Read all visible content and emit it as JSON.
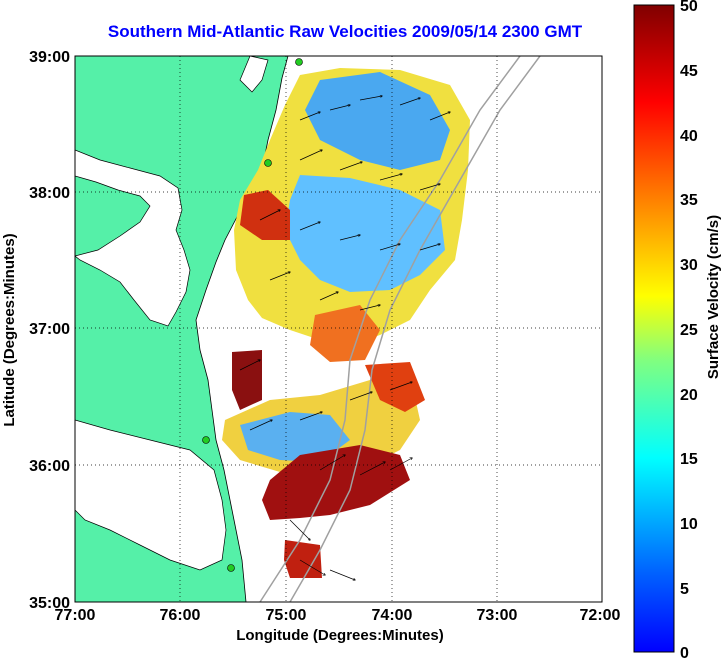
{
  "title": "Southern Mid-Atlantic Raw Velocities 2009/05/14 2300 GMT",
  "xlabel": "Longitude (Degrees:Minutes)",
  "ylabel": "Latitude (Degrees:Minutes)",
  "colorbar_label": "Surface Velocity (cm/s)",
  "x_ticks": [
    "77:00",
    "76:00",
    "75:00",
    "74:00",
    "73:00",
    "72:00"
  ],
  "y_ticks": [
    "39:00",
    "38:00",
    "37:00",
    "36:00",
    "35:00"
  ],
  "colorbar_ticks": [
    "50",
    "45",
    "40",
    "35",
    "30",
    "25",
    "20",
    "15",
    "10",
    "5",
    "0"
  ],
  "colors": {
    "land": "#55f0a8",
    "ocean": "#ffffff",
    "grid": "#000000",
    "title": "#0000ff",
    "bathymetry": "#a0a0a0"
  },
  "chart_data": {
    "type": "heatmap",
    "title": "Southern Mid-Atlantic Raw Velocities 2009/05/14 2300 GMT",
    "xlabel": "Longitude (Degrees:Minutes)",
    "ylabel": "Latitude (Degrees:Minutes)",
    "xlim": [
      -77,
      -72
    ],
    "ylim": [
      35,
      39
    ],
    "clim": [
      0,
      50
    ],
    "colorbar_label": "Surface Velocity (cm/s)",
    "colormap": "jet",
    "grid": true
  }
}
